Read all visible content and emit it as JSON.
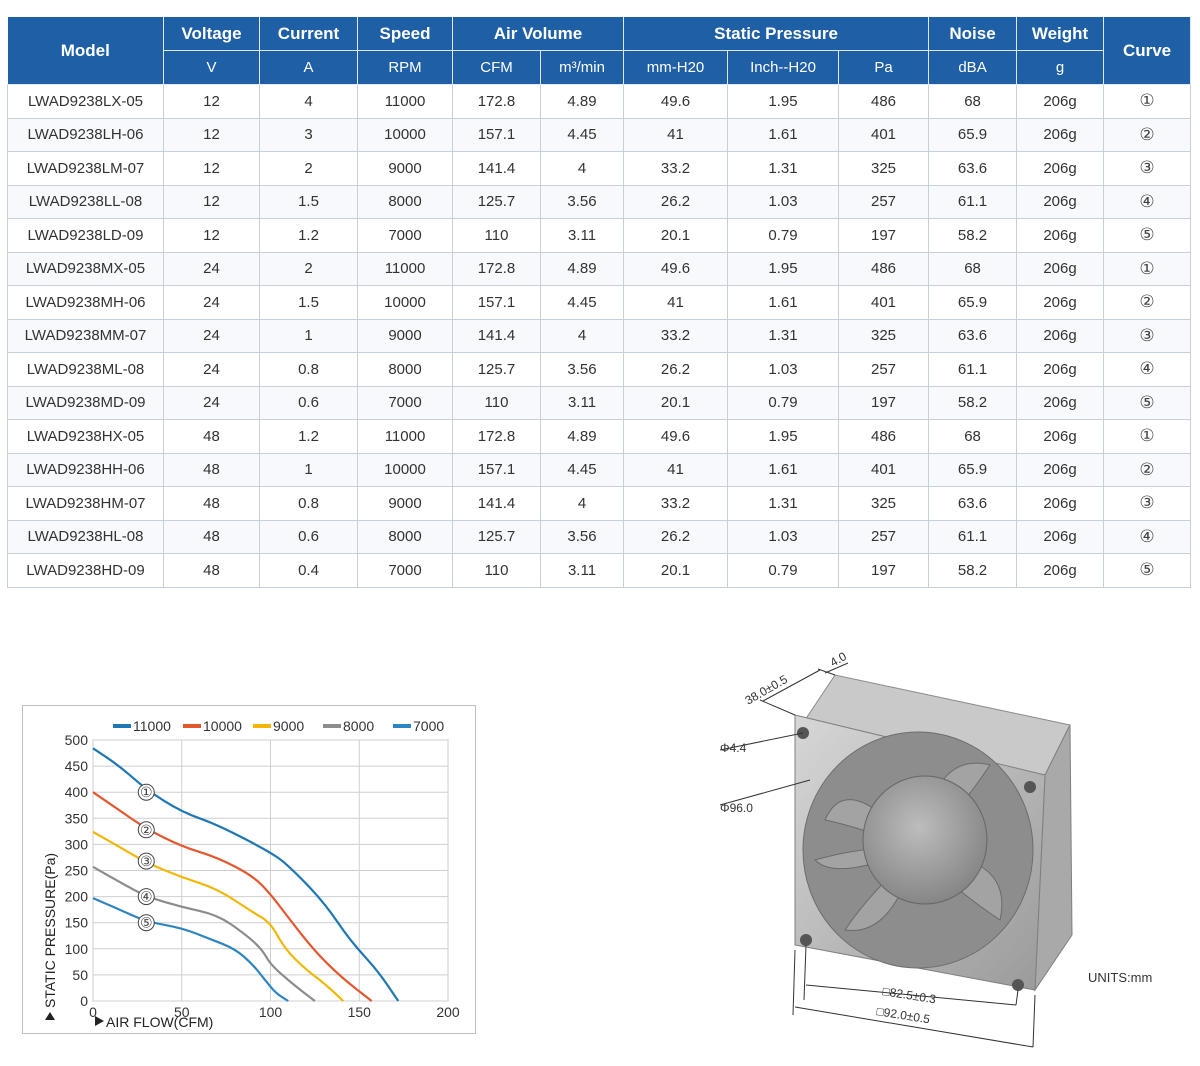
{
  "table": {
    "headers": {
      "model": "Model",
      "voltage": "Voltage",
      "current": "Current",
      "speed": "Speed",
      "air_volume": "Air Volume",
      "static_pressure": "Static Pressure",
      "noise": "Noise",
      "weight": "Weight",
      "curve": "Curve"
    },
    "units": {
      "voltage": "V",
      "current": "A",
      "speed": "RPM",
      "cfm": "CFM",
      "m3min": "m³/min",
      "mmh20": "mm-H20",
      "inchh20": "Inch--H20",
      "pa": "Pa",
      "noise": "dBA",
      "weight": "g"
    },
    "rows": [
      [
        "LWAD9238LX-05",
        "12",
        "4",
        "11000",
        "172.8",
        "4.89",
        "49.6",
        "1.95",
        "486",
        "68",
        "206g",
        "①"
      ],
      [
        "LWAD9238LH-06",
        "12",
        "3",
        "10000",
        "157.1",
        "4.45",
        "41",
        "1.61",
        "401",
        "65.9",
        "206g",
        "②"
      ],
      [
        "LWAD9238LM-07",
        "12",
        "2",
        "9000",
        "141.4",
        "4",
        "33.2",
        "1.31",
        "325",
        "63.6",
        "206g",
        "③"
      ],
      [
        "LWAD9238LL-08",
        "12",
        "1.5",
        "8000",
        "125.7",
        "3.56",
        "26.2",
        "1.03",
        "257",
        "61.1",
        "206g",
        "④"
      ],
      [
        "LWAD9238LD-09",
        "12",
        "1.2",
        "7000",
        "110",
        "3.11",
        "20.1",
        "0.79",
        "197",
        "58.2",
        "206g",
        "⑤"
      ],
      [
        "LWAD9238MX-05",
        "24",
        "2",
        "11000",
        "172.8",
        "4.89",
        "49.6",
        "1.95",
        "486",
        "68",
        "206g",
        "①"
      ],
      [
        "LWAD9238MH-06",
        "24",
        "1.5",
        "10000",
        "157.1",
        "4.45",
        "41",
        "1.61",
        "401",
        "65.9",
        "206g",
        "②"
      ],
      [
        "LWAD9238MM-07",
        "24",
        "1",
        "9000",
        "141.4",
        "4",
        "33.2",
        "1.31",
        "325",
        "63.6",
        "206g",
        "③"
      ],
      [
        "LWAD9238ML-08",
        "24",
        "0.8",
        "8000",
        "125.7",
        "3.56",
        "26.2",
        "1.03",
        "257",
        "61.1",
        "206g",
        "④"
      ],
      [
        "LWAD9238MD-09",
        "24",
        "0.6",
        "7000",
        "110",
        "3.11",
        "20.1",
        "0.79",
        "197",
        "58.2",
        "206g",
        "⑤"
      ],
      [
        "LWAD9238HX-05",
        "48",
        "1.2",
        "11000",
        "172.8",
        "4.89",
        "49.6",
        "1.95",
        "486",
        "68",
        "206g",
        "①"
      ],
      [
        "LWAD9238HH-06",
        "48",
        "1",
        "10000",
        "157.1",
        "4.45",
        "41",
        "1.61",
        "401",
        "65.9",
        "206g",
        "②"
      ],
      [
        "LWAD9238HM-07",
        "48",
        "0.8",
        "9000",
        "141.4",
        "4",
        "33.2",
        "1.31",
        "325",
        "63.6",
        "206g",
        "③"
      ],
      [
        "LWAD9238HL-08",
        "48",
        "0.6",
        "8000",
        "125.7",
        "3.56",
        "26.2",
        "1.03",
        "257",
        "61.1",
        "206g",
        "④"
      ],
      [
        "LWAD9238HD-09",
        "48",
        "0.4",
        "7000",
        "110",
        "3.11",
        "20.1",
        "0.79",
        "197",
        "58.2",
        "206g",
        "⑤"
      ]
    ]
  },
  "chart_data": {
    "type": "line",
    "xlabel": "AIR FLOW(CFM)",
    "ylabel": "STATIC PRESSURE(Pa)",
    "xlim": [
      0,
      200
    ],
    "ylim": [
      0,
      500
    ],
    "x_ticks": [
      "0",
      "50",
      "100",
      "150",
      "200"
    ],
    "y_ticks": [
      "0",
      "50",
      "100",
      "150",
      "200",
      "250",
      "300",
      "350",
      "400",
      "450",
      "500"
    ],
    "grid": true,
    "legend_position": "top",
    "series": [
      {
        "name": "11000",
        "color": "#1f77b4",
        "marker": "①",
        "marker_at": [
          30,
          400
        ],
        "points": [
          [
            0,
            484
          ],
          [
            15,
            450
          ],
          [
            30,
            405
          ],
          [
            50,
            362
          ],
          [
            70,
            338
          ],
          [
            100,
            285
          ],
          [
            110,
            260
          ],
          [
            130,
            190
          ],
          [
            145,
            115
          ],
          [
            160,
            60
          ],
          [
            172,
            0
          ]
        ]
      },
      {
        "name": "10000",
        "color": "#e4572e",
        "marker": "②",
        "marker_at": [
          30,
          328
        ],
        "points": [
          [
            0,
            400
          ],
          [
            15,
            365
          ],
          [
            30,
            330
          ],
          [
            50,
            296
          ],
          [
            70,
            275
          ],
          [
            90,
            240
          ],
          [
            100,
            205
          ],
          [
            110,
            160
          ],
          [
            125,
            95
          ],
          [
            140,
            45
          ],
          [
            157,
            0
          ]
        ]
      },
      {
        "name": "9000",
        "color": "#f2b705",
        "marker": "③",
        "marker_at": [
          30,
          268
        ],
        "points": [
          [
            0,
            324
          ],
          [
            15,
            295
          ],
          [
            30,
            265
          ],
          [
            50,
            237
          ],
          [
            70,
            215
          ],
          [
            90,
            170
          ],
          [
            100,
            150
          ],
          [
            108,
            100
          ],
          [
            120,
            60
          ],
          [
            130,
            35
          ],
          [
            141,
            0
          ]
        ]
      },
      {
        "name": "8000",
        "color": "#8c8c8c",
        "marker": "④",
        "marker_at": [
          30,
          200
        ],
        "points": [
          [
            0,
            257
          ],
          [
            15,
            228
          ],
          [
            30,
            200
          ],
          [
            50,
            180
          ],
          [
            70,
            165
          ],
          [
            85,
            130
          ],
          [
            95,
            100
          ],
          [
            100,
            70
          ],
          [
            110,
            40
          ],
          [
            118,
            18
          ],
          [
            125,
            0
          ]
        ]
      },
      {
        "name": "7000",
        "color": "#2e86c1",
        "marker": "⑤",
        "marker_at": [
          30,
          150
        ],
        "points": [
          [
            0,
            197
          ],
          [
            15,
            175
          ],
          [
            30,
            152
          ],
          [
            50,
            140
          ],
          [
            65,
            120
          ],
          [
            80,
            100
          ],
          [
            90,
            70
          ],
          [
            97,
            40
          ],
          [
            103,
            15
          ],
          [
            110,
            0
          ]
        ]
      }
    ]
  },
  "drawing": {
    "dims": {
      "depth": "38.0±0.5",
      "flange": "4.0",
      "hole": "Φ4.4",
      "outer_diameter": "Φ96.0",
      "hole_pitch": "□82.5±0.3",
      "frame": "□92.0±0.5"
    },
    "units_label": "UNITS:mm"
  }
}
